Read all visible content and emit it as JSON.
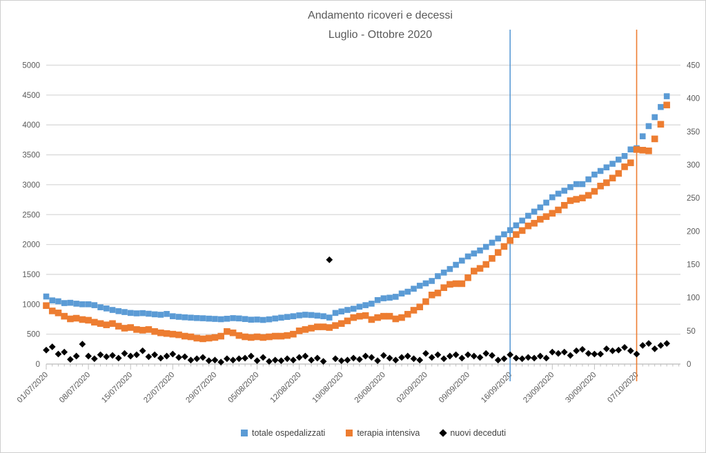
{
  "window": {
    "title_line1": "Andamento ricoveri e decessi",
    "title_line2": "Luglio - Ottobre 2020"
  },
  "legend": [
    {
      "label": "totale ospedalizzati",
      "color": "#5B9BD5",
      "marker": "square"
    },
    {
      "label": "terapia intensiva",
      "color": "#ED7D31",
      "marker": "square"
    },
    {
      "label": "nuovi deceduti",
      "color": "#000000",
      "marker": "diamond"
    }
  ],
  "chart_data": {
    "type": "scatter",
    "title": "Andamento ricoveri e decessi Luglio - Ottobre 2020",
    "x_start_date": "01/07/2020",
    "x_interval": "daily",
    "x_tick_interval_days": 7,
    "x_tick_labels": [
      "01/07/2020",
      "08/07/2020",
      "15/07/2020",
      "22/07/2020",
      "29/07/2020",
      "05/08/2020",
      "12/08/2020",
      "19/08/2020",
      "26/08/2020",
      "02/09/2020",
      "09/09/2020",
      "16/09/2020",
      "23/09/2020",
      "30/09/2020",
      "07/10/2020"
    ],
    "y_axis_left": {
      "min": 0,
      "max": 5000,
      "step": 500,
      "ticks": [
        0,
        500,
        1000,
        1500,
        2000,
        2500,
        3000,
        3500,
        4000,
        4500,
        5000
      ]
    },
    "y_axis_right": {
      "min": 0,
      "max": 450,
      "step": 50,
      "ticks": [
        0,
        50,
        100,
        150,
        200,
        250,
        300,
        350,
        400,
        450
      ]
    },
    "grid": "horizontal",
    "legend_position": "bottom",
    "colors": {
      "grid": "#D9D9D9",
      "axis": "#BFBFBF",
      "text": "#595959"
    },
    "reference_lines": [
      {
        "date": "16/09/2020",
        "day_index": 77,
        "color": "#5B9BD5"
      },
      {
        "date": "07/10/2020",
        "day_index": 98,
        "color": "#ED7D31"
      }
    ],
    "series": [
      {
        "name": "totale ospedalizzati",
        "axis": "left",
        "marker": "square",
        "color": "#5B9BD5",
        "values": [
          1130,
          1065,
          1050,
          1020,
          1025,
          1010,
          1000,
          1000,
          985,
          950,
          930,
          905,
          885,
          870,
          855,
          848,
          852,
          842,
          832,
          825,
          838,
          800,
          790,
          782,
          776,
          770,
          766,
          760,
          755,
          750,
          758,
          768,
          763,
          753,
          742,
          745,
          738,
          748,
          762,
          776,
          788,
          800,
          815,
          825,
          820,
          810,
          800,
          778,
          855,
          880,
          905,
          925,
          960,
          985,
          1010,
          1070,
          1100,
          1110,
          1125,
          1180,
          1210,
          1260,
          1310,
          1350,
          1390,
          1470,
          1530,
          1590,
          1660,
          1730,
          1800,
          1850,
          1900,
          1960,
          2030,
          2100,
          2170,
          2240,
          2320,
          2400,
          2480,
          2550,
          2620,
          2700,
          2790,
          2850,
          2900,
          2960,
          3010,
          3010,
          3090,
          3170,
          3230,
          3290,
          3350,
          3420,
          3480,
          3590,
          3610,
          3810,
          3980,
          4130,
          4300,
          4480
        ]
      },
      {
        "name": "terapia intensiva",
        "axis": "right",
        "marker": "square",
        "color": "#ED7D31",
        "values": [
          88,
          80,
          77,
          72,
          68,
          69,
          67,
          66,
          63,
          61,
          59,
          61,
          57,
          54,
          55,
          52,
          51,
          52,
          49,
          47,
          46,
          45,
          44,
          42,
          41,
          39,
          38,
          39,
          40,
          42,
          49,
          47,
          43,
          41,
          40,
          41,
          40,
          41,
          42,
          42,
          43,
          45,
          50,
          52,
          54,
          56,
          56,
          55,
          58,
          61,
          65,
          70,
          72,
          73,
          67,
          70,
          72,
          72,
          68,
          70,
          75,
          81,
          86,
          94,
          104,
          107,
          115,
          120,
          121,
          121,
          130,
          140,
          144,
          150,
          159,
          168,
          177,
          186,
          195,
          201,
          208,
          212,
          218,
          222,
          227,
          232,
          239,
          246,
          248,
          250,
          254,
          260,
          268,
          273,
          280,
          287,
          297,
          303,
          323,
          322,
          321,
          339,
          361,
          390
        ]
      },
      {
        "name": "nuovi deceduti",
        "axis": "right",
        "marker": "diamond",
        "color": "#000000",
        "values": [
          21,
          26,
          15,
          18,
          7,
          12,
          30,
          12,
          8,
          14,
          11,
          13,
          9,
          16,
          12,
          14,
          20,
          11,
          14,
          9,
          12,
          15,
          10,
          11,
          6,
          8,
          10,
          5,
          6,
          3,
          8,
          6,
          8,
          9,
          12,
          5,
          10,
          4,
          6,
          5,
          8,
          6,
          10,
          12,
          6,
          9,
          4,
          157,
          8,
          5,
          6,
          9,
          7,
          12,
          10,
          5,
          13,
          9,
          6,
          10,
          12,
          8,
          6,
          16,
          10,
          14,
          8,
          12,
          14,
          9,
          14,
          12,
          10,
          16,
          13,
          6,
          8,
          14,
          9,
          8,
          10,
          9,
          12,
          9,
          18,
          16,
          18,
          13,
          20,
          22,
          16,
          15,
          15,
          23,
          20,
          21,
          25,
          20,
          15,
          28,
          31,
          23,
          28,
          31
        ]
      }
    ]
  }
}
